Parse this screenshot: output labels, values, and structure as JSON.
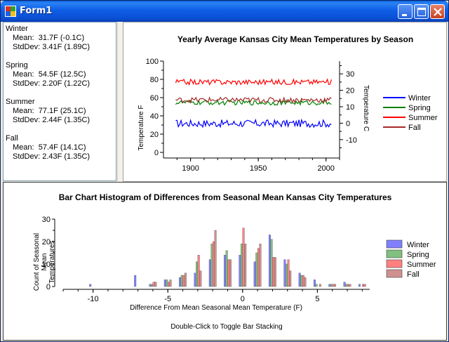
{
  "window": {
    "title": "Form1"
  },
  "stats": [
    {
      "season": "Winter",
      "mean_label": "Mean:",
      "mean": "31.7F (-0.1C)",
      "std_label": "StdDev:",
      "std": "3.41F (1.89C)"
    },
    {
      "season": "Spring",
      "mean_label": "Mean:",
      "mean": "54.5F (12.5C)",
      "std_label": "StdDev:",
      "std": "2.20F (1.22C)"
    },
    {
      "season": "Summer",
      "mean_label": "Mean:",
      "mean": "77.1F (25.1C)",
      "std_label": "StdDev:",
      "std": "2.44F (1.35C)"
    },
    {
      "season": "Fall",
      "mean_label": "Mean:",
      "mean": "57.4F (14.1C)",
      "std_label": "StdDev:",
      "std": "2.43F (1.35C)"
    }
  ],
  "footer_hint": "Double-Click to Toggle Bar Stacking",
  "colors": {
    "winter": "#0000ff",
    "spring": "#008000",
    "summer": "#ff0000",
    "fall": "#a52a2a",
    "winter_bar": "#8080ff",
    "spring_bar": "#80c080",
    "summer_bar": "#ff8080",
    "fall_bar": "#d09090"
  },
  "chart_data": [
    {
      "type": "line",
      "title": "Yearly Average Kansas City Mean Temperatures by Season",
      "ylabel": "Temperature F",
      "y2label": "Temperature C",
      "xlim": [
        1880,
        2010
      ],
      "ylim": [
        0,
        100
      ],
      "y2lim": [
        -17.78,
        37.78
      ],
      "xticks": [
        "1900",
        "1950",
        "2000"
      ],
      "yticks": [
        "0",
        "20",
        "40",
        "60",
        "80",
        "100"
      ],
      "y2ticks": [
        "-10",
        "0",
        "10",
        "20",
        "30"
      ],
      "legend_position": "right",
      "series": [
        {
          "name": "Winter",
          "mean": 31.7,
          "std": 3.41
        },
        {
          "name": "Spring",
          "mean": 54.5,
          "std": 2.2
        },
        {
          "name": "Summer",
          "mean": 77.1,
          "std": 2.44
        },
        {
          "name": "Fall",
          "mean": 57.4,
          "std": 2.43
        }
      ],
      "x_start": 1889,
      "x_end": 2004
    },
    {
      "type": "bar",
      "title": "Bar Chart Histogram of Differences from Seasonal Mean Kansas City Temperatures",
      "xlabel": "Difference From Mean Seasonal Mean Temperature (F)",
      "ylabel_lines": [
        "Count of Seasonal",
        "Mean",
        "Temperatures"
      ],
      "xlim": [
        -12,
        8.5
      ],
      "ylim": [
        0,
        30
      ],
      "xticks": [
        "-10",
        "-5",
        "0",
        "5"
      ],
      "yticks": [
        "0",
        "10",
        "20",
        "30"
      ],
      "legend_position": "right",
      "categories": [
        -10,
        -7,
        -6,
        -5,
        -4,
        -3,
        -2,
        -1,
        0,
        1,
        2,
        3,
        4,
        5,
        6,
        7,
        8
      ],
      "series": [
        {
          "name": "Winter",
          "values": [
            1,
            5,
            1,
            3,
            4,
            6,
            12,
            14,
            14,
            11,
            23,
            12,
            6,
            3,
            1,
            2,
            1
          ]
        },
        {
          "name": "Spring",
          "values": [
            0,
            0,
            1,
            3,
            5,
            11,
            19,
            16,
            19,
            15,
            21,
            10,
            5,
            1,
            1,
            1,
            0
          ]
        },
        {
          "name": "Summer",
          "values": [
            0,
            0,
            2,
            2,
            5,
            14,
            20,
            12,
            26,
            17,
            13,
            12,
            5,
            0,
            1,
            1,
            1
          ]
        },
        {
          "name": "Fall",
          "values": [
            0,
            0,
            2,
            3,
            6,
            7,
            25,
            12,
            19,
            19,
            13,
            7,
            4,
            1,
            1,
            1,
            1
          ]
        }
      ]
    }
  ]
}
